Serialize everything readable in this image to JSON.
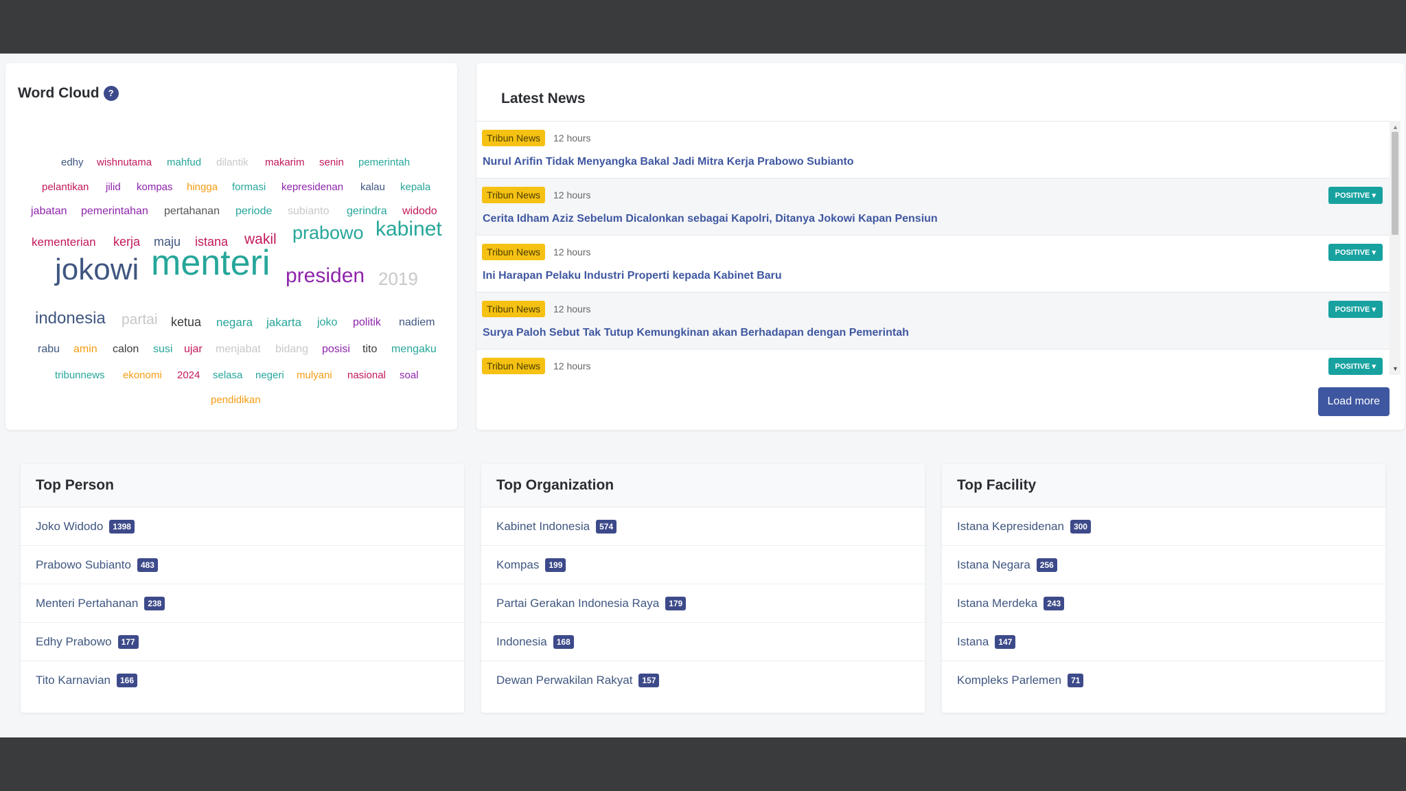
{
  "word_cloud": {
    "title": "Word Cloud",
    "help": "?",
    "words": [
      {
        "text": "edhy",
        "color": "#3f5680"
      },
      {
        "text": "wishnutama",
        "color": "#c2185b"
      },
      {
        "text": "mahfud",
        "color": "#26a69a"
      },
      {
        "text": "dilantik",
        "color": "#c8c8c8"
      },
      {
        "text": "makarim",
        "color": "#c2185b"
      },
      {
        "text": "senin",
        "color": "#c2185b"
      },
      {
        "text": "pemerintah",
        "color": "#26a69a"
      },
      {
        "text": "pelantikan",
        "color": "#c2185b"
      },
      {
        "text": "jilid",
        "color": "#8e24aa"
      },
      {
        "text": "kompas",
        "color": "#8e24aa"
      },
      {
        "text": "hingga",
        "color": "#f39c12"
      },
      {
        "text": "formasi",
        "color": "#26a69a"
      },
      {
        "text": "kepresidenan",
        "color": "#8e24aa"
      },
      {
        "text": "kalau",
        "color": "#3f5680"
      },
      {
        "text": "kepala",
        "color": "#26a69a"
      },
      {
        "text": "jabatan",
        "color": "#8e24aa"
      },
      {
        "text": "pemerintahan",
        "color": "#8e24aa"
      },
      {
        "text": "pertahanan",
        "color": "#555555"
      },
      {
        "text": "periode",
        "color": "#26a69a"
      },
      {
        "text": "subianto",
        "color": "#c8c8c8"
      },
      {
        "text": "gerindra",
        "color": "#26a69a"
      },
      {
        "text": "widodo",
        "color": "#c2185b"
      },
      {
        "text": "kementerian",
        "color": "#c2185b"
      },
      {
        "text": "kerja",
        "color": "#c2185b"
      },
      {
        "text": "maju",
        "color": "#3f5680"
      },
      {
        "text": "istana",
        "color": "#c2185b"
      },
      {
        "text": "wakil",
        "color": "#c2185b"
      },
      {
        "text": "prabowo",
        "color": "#26a69a"
      },
      {
        "text": "kabinet",
        "color": "#26a69a"
      },
      {
        "text": "jokowi",
        "color": "#3f5680"
      },
      {
        "text": "menteri",
        "color": "#26a69a"
      },
      {
        "text": "presiden",
        "color": "#8e24aa"
      },
      {
        "text": "2019",
        "color": "#c8c8c8"
      },
      {
        "text": "indonesia",
        "color": "#3f5680"
      },
      {
        "text": "partai",
        "color": "#c8c8c8"
      },
      {
        "text": "ketua",
        "color": "#3a3a3a"
      },
      {
        "text": "negara",
        "color": "#26a69a"
      },
      {
        "text": "jakarta",
        "color": "#26a69a"
      },
      {
        "text": "joko",
        "color": "#26a69a"
      },
      {
        "text": "politik",
        "color": "#8e24aa"
      },
      {
        "text": "nadiem",
        "color": "#3f5680"
      },
      {
        "text": "rabu",
        "color": "#3f5680"
      },
      {
        "text": "amin",
        "color": "#f39c12"
      },
      {
        "text": "calon",
        "color": "#3a3a3a"
      },
      {
        "text": "susi",
        "color": "#26a69a"
      },
      {
        "text": "ujar",
        "color": "#c2185b"
      },
      {
        "text": "menjabat",
        "color": "#c8c8c8"
      },
      {
        "text": "bidang",
        "color": "#c8c8c8"
      },
      {
        "text": "posisi",
        "color": "#8e24aa"
      },
      {
        "text": "tito",
        "color": "#3a3a3a"
      },
      {
        "text": "mengaku",
        "color": "#26a69a"
      },
      {
        "text": "tribunnews",
        "color": "#26a69a"
      },
      {
        "text": "ekonomi",
        "color": "#f39c12"
      },
      {
        "text": "2024",
        "color": "#c2185b"
      },
      {
        "text": "selasa",
        "color": "#26a69a"
      },
      {
        "text": "negeri",
        "color": "#26a69a"
      },
      {
        "text": "mulyani",
        "color": "#f39c12"
      },
      {
        "text": "nasional",
        "color": "#c2185b"
      },
      {
        "text": "soal",
        "color": "#8e24aa"
      },
      {
        "text": "pendidikan",
        "color": "#f39c12"
      }
    ]
  },
  "latest_news": {
    "title": "Latest News",
    "load_more": "Load more",
    "items": [
      {
        "source": "Tribun News",
        "time": "12 hours",
        "headline": "Nurul Arifin Tidak Menyangka Bakal Jadi Mitra Kerja Prabowo Subianto",
        "sentiment": ""
      },
      {
        "source": "Tribun News",
        "time": "12 hours",
        "headline": "Cerita Idham Aziz Sebelum Dicalonkan sebagai Kapolri, Ditanya Jokowi Kapan Pensiun",
        "sentiment": "POSITIVE"
      },
      {
        "source": "Tribun News",
        "time": "12 hours",
        "headline": "Ini Harapan Pelaku Industri Properti kepada Kabinet Baru",
        "sentiment": "POSITIVE"
      },
      {
        "source": "Tribun News",
        "time": "12 hours",
        "headline": "Surya Paloh Sebut Tak Tutup Kemungkinan akan Berhadapan dengan Pemerintah",
        "sentiment": "POSITIVE"
      },
      {
        "source": "Tribun News",
        "time": "12 hours",
        "headline": "",
        "sentiment": "POSITIVE"
      }
    ]
  },
  "top_person": {
    "title": "Top Person",
    "items": [
      {
        "name": "Joko Widodo",
        "count": "1398"
      },
      {
        "name": "Prabowo Subianto",
        "count": "483"
      },
      {
        "name": "Menteri Pertahanan",
        "count": "238"
      },
      {
        "name": "Edhy Prabowo",
        "count": "177"
      },
      {
        "name": "Tito Karnavian",
        "count": "166"
      }
    ]
  },
  "top_organization": {
    "title": "Top Organization",
    "items": [
      {
        "name": "Kabinet Indonesia",
        "count": "574"
      },
      {
        "name": "Kompas",
        "count": "199"
      },
      {
        "name": "Partai Gerakan Indonesia Raya",
        "count": "179"
      },
      {
        "name": "Indonesia",
        "count": "168"
      },
      {
        "name": "Dewan Perwakilan Rakyat",
        "count": "157"
      }
    ]
  },
  "top_facility": {
    "title": "Top Facility",
    "items": [
      {
        "name": "Istana Kepresidenan",
        "count": "300"
      },
      {
        "name": "Istana Negara",
        "count": "256"
      },
      {
        "name": "Istana Merdeka",
        "count": "243"
      },
      {
        "name": "Istana",
        "count": "147"
      },
      {
        "name": "Kompleks Parlemen",
        "count": "71"
      }
    ]
  }
}
